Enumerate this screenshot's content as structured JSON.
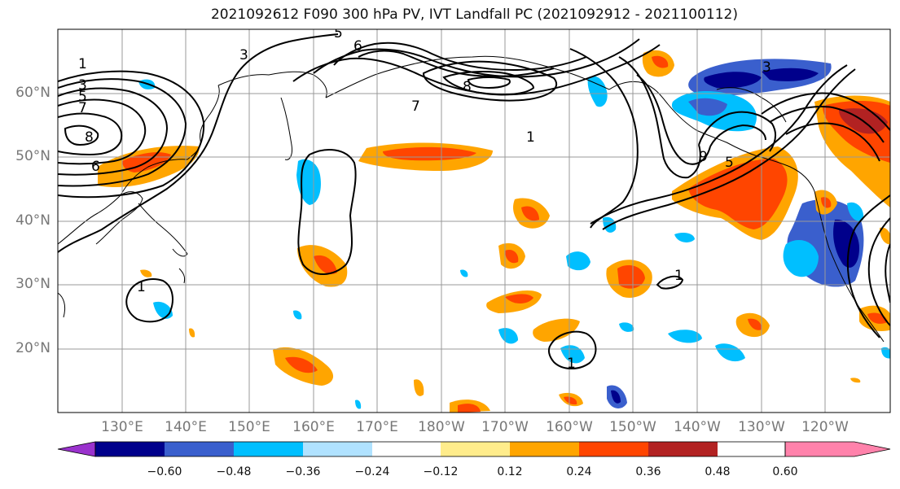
{
  "title": "2021092612 F090 300 hPa PV, IVT Landfall PC (2021092912 - 2021100112)",
  "lat_labels": [
    "60°N",
    "50°N",
    "40°N",
    "30°N",
    "20°N"
  ],
  "lon_labels": [
    "130°E",
    "140°E",
    "150°E",
    "160°E",
    "170°E",
    "180°W",
    "170°W",
    "160°W",
    "150°W",
    "140°W",
    "130°W",
    "120°W"
  ],
  "colorbar": {
    "colors": [
      "#9a32cd",
      "#00008b",
      "#3a5fcd",
      "#00bfff",
      "#b0e2ff",
      "#ffffff",
      "#ffec8b",
      "#ffa500",
      "#ff4500",
      "#b22222",
      "#ff82ab"
    ],
    "tick_labels": [
      "−0.60",
      "−0.48",
      "−0.36",
      "−0.24",
      "−0.12",
      "0.12",
      "0.24",
      "0.36",
      "0.48",
      "0.60"
    ]
  },
  "pv_contour_labels": [
    "1",
    "3",
    "5",
    "7",
    "8",
    "6",
    "5",
    "3",
    "6",
    "8",
    "7",
    "1",
    "9",
    "5",
    "3",
    "1",
    "1",
    "1"
  ]
}
